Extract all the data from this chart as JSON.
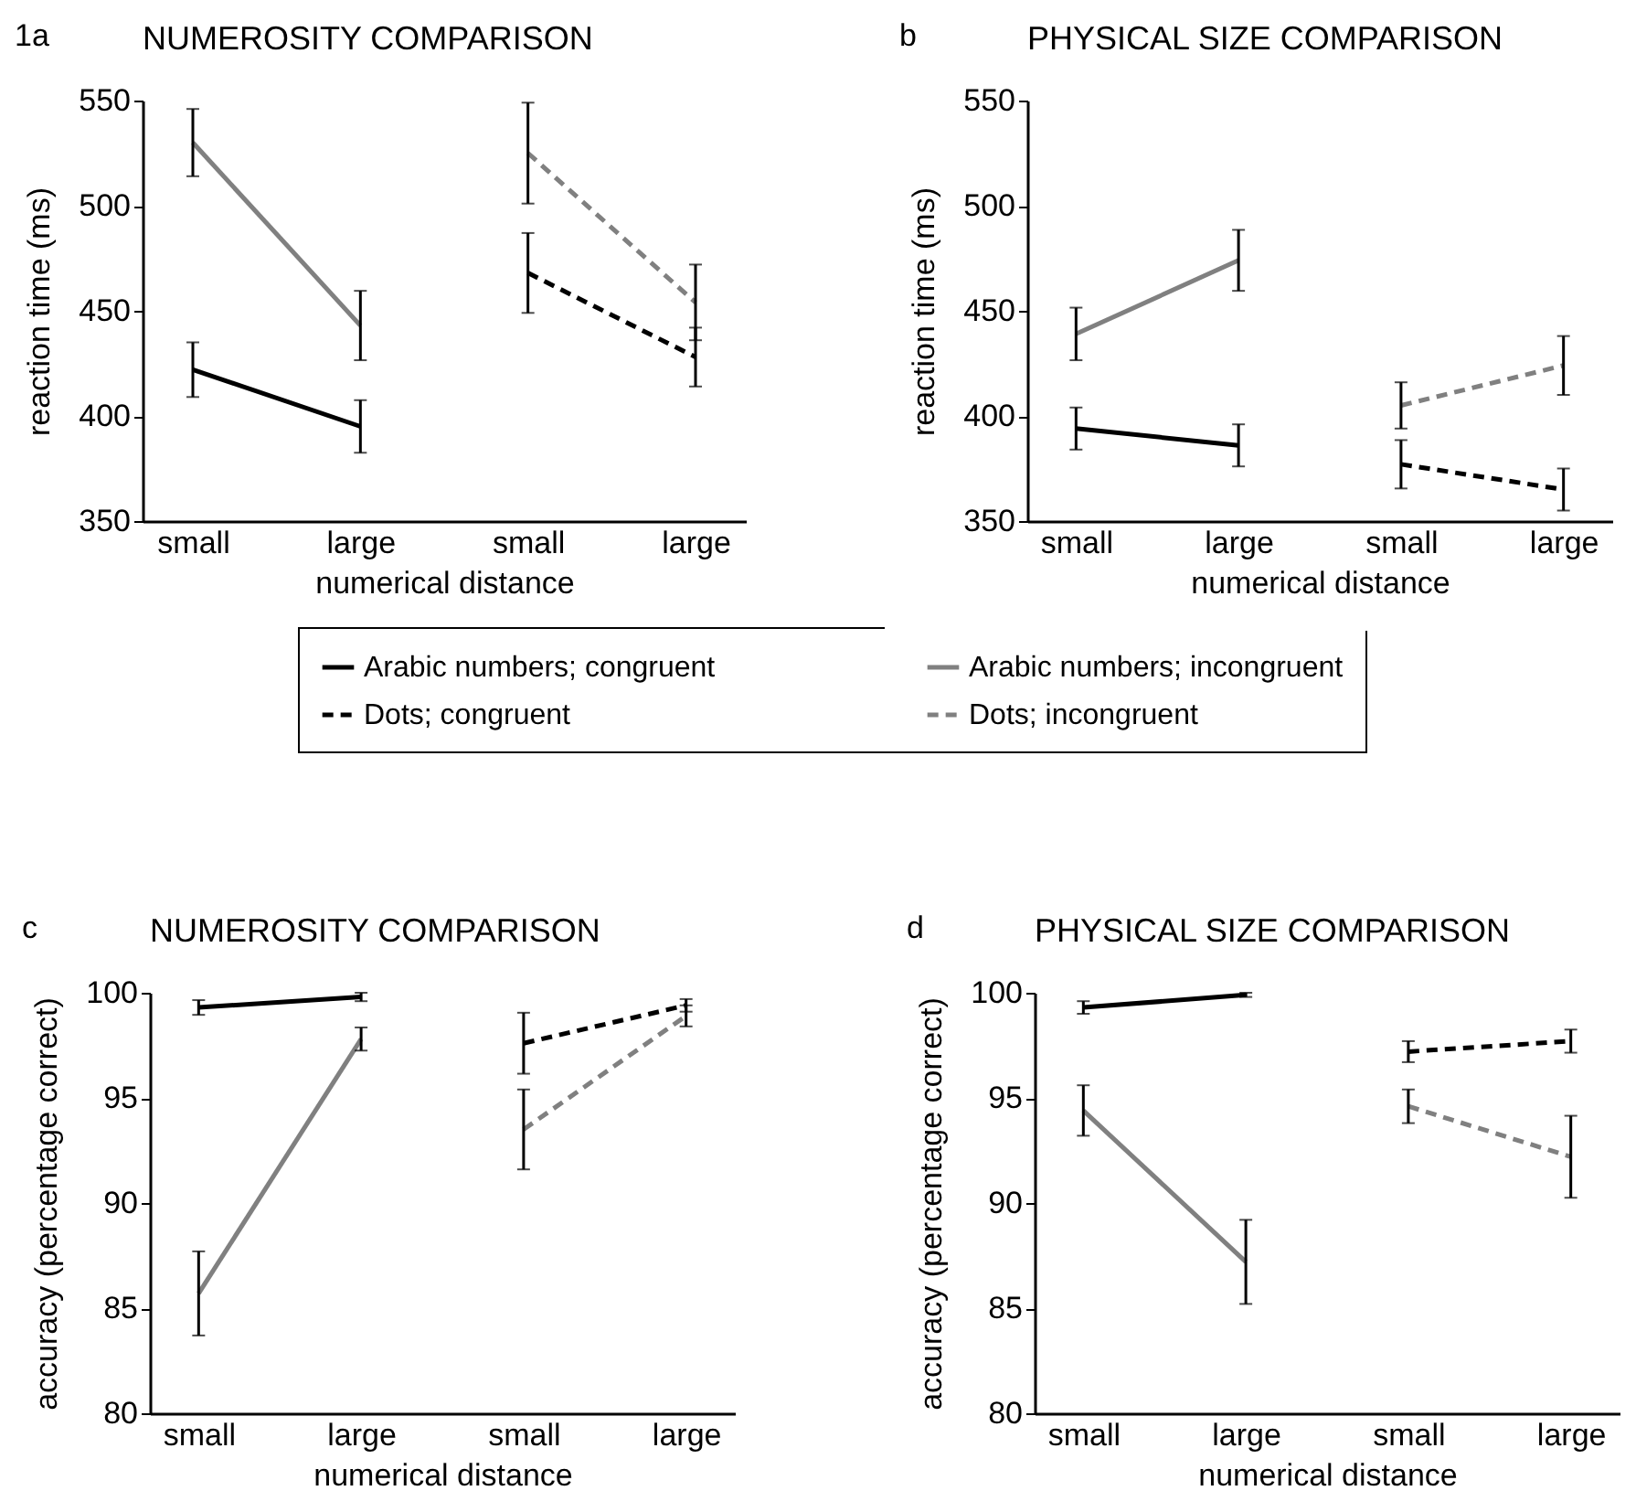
{
  "chart_data": [
    {
      "type": "line",
      "title": "NUMEROSITY COMPARISON",
      "annotations": [
        "1a"
      ],
      "xlabel": "numerical distance",
      "ylabel": "reaction time (ms)",
      "categories": [
        "small",
        "large",
        "small",
        "large"
      ],
      "ylim": [
        350,
        550
      ],
      "yticks": [
        350,
        400,
        450,
        500,
        550
      ],
      "legend": "bottom",
      "series": [
        {
          "name": "Arabic numbers; congruent",
          "color": "#000000",
          "line_style": "solid",
          "values": [
            422,
            395,
            null,
            null
          ],
          "errors": [
            13,
            12.5,
            null,
            null
          ]
        },
        {
          "name": "Dots; congruent",
          "color": "#000000",
          "line_style": "dashed",
          "values": [
            null,
            null,
            468,
            428
          ],
          "errors": [
            null,
            null,
            19,
            14
          ]
        },
        {
          "name": "Arabic numbers; incongruent",
          "color": "#808080",
          "line_style": "solid",
          "values": [
            530,
            443,
            null,
            null
          ],
          "errors": [
            16,
            16.5,
            null,
            null
          ]
        },
        {
          "name": "Dots; incongruent",
          "color": "#808080",
          "line_style": "dashed",
          "values": [
            null,
            null,
            525,
            454
          ],
          "errors": [
            null,
            null,
            24,
            18
          ]
        }
      ]
    },
    {
      "type": "line",
      "title": "PHYSICAL SIZE COMPARISON",
      "annotations": [
        "b"
      ],
      "xlabel": "numerical distance",
      "ylabel": "reaction time (ms)",
      "categories": [
        "small",
        "large",
        "small",
        "large"
      ],
      "ylim": [
        350,
        550
      ],
      "yticks": [
        350,
        400,
        450,
        500,
        550
      ],
      "series": [
        {
          "color": "#000000",
          "line_style": "solid",
          "values": [
            394,
            386,
            null,
            null
          ],
          "errors": [
            10,
            10,
            null,
            null
          ]
        },
        {
          "color": "#000000",
          "line_style": "dashed",
          "values": [
            null,
            null,
            377,
            365
          ],
          "errors": [
            null,
            null,
            11.5,
            10
          ]
        },
        {
          "color": "#808080",
          "line_style": "solid",
          "values": [
            439,
            474,
            null,
            null
          ],
          "errors": [
            12.5,
            14.5,
            null,
            null
          ]
        },
        {
          "color": "#808080",
          "line_style": "dashed",
          "values": [
            null,
            null,
            405,
            424
          ],
          "errors": [
            null,
            null,
            11,
            14
          ]
        }
      ]
    },
    {
      "type": "line",
      "title": "NUMEROSITY COMPARISON",
      "annotations": [
        "c"
      ],
      "xlabel": "numerical distance",
      "ylabel": "accuracy (percentage correct)",
      "categories": [
        "small",
        "large",
        "small",
        "large"
      ],
      "ylim": [
        80,
        100
      ],
      "yticks": [
        80,
        85,
        90,
        95,
        100
      ],
      "series": [
        {
          "color": "#000000",
          "line_style": "solid",
          "values": [
            99.3,
            99.8,
            null,
            null
          ],
          "errors": [
            0.35,
            0.2,
            null,
            null
          ]
        },
        {
          "color": "#000000",
          "line_style": "dashed",
          "values": [
            null,
            null,
            97.6,
            99.4
          ],
          "errors": [
            null,
            null,
            1.45,
            0.3
          ]
        },
        {
          "color": "#808080",
          "line_style": "solid",
          "values": [
            85.7,
            97.8,
            null,
            null
          ],
          "errors": [
            2,
            0.55,
            null,
            null
          ]
        },
        {
          "color": "#808080",
          "line_style": "dashed",
          "values": [
            null,
            null,
            93.5,
            98.9
          ],
          "errors": [
            null,
            null,
            1.9,
            0.5
          ]
        }
      ]
    },
    {
      "type": "line",
      "title": "PHYSICAL SIZE COMPARISON",
      "annotations": [
        "d"
      ],
      "xlabel": "numerical distance",
      "ylabel": "accuracy (percentage correct)",
      "categories": [
        "small",
        "large",
        "small",
        "large"
      ],
      "ylim": [
        80,
        100
      ],
      "yticks": [
        80,
        85,
        90,
        95,
        100
      ],
      "series": [
        {
          "color": "#000000",
          "line_style": "solid",
          "values": [
            99.3,
            99.9,
            null,
            null
          ],
          "errors": [
            0.3,
            0.1,
            null,
            null
          ]
        },
        {
          "color": "#000000",
          "line_style": "dashed",
          "values": [
            null,
            null,
            97.2,
            97.7
          ],
          "errors": [
            null,
            null,
            0.5,
            0.55
          ]
        },
        {
          "color": "#808080",
          "line_style": "solid",
          "values": [
            94.4,
            87.2,
            null,
            null
          ],
          "errors": [
            1.2,
            2,
            null,
            null
          ]
        },
        {
          "color": "#808080",
          "line_style": "dashed",
          "values": [
            null,
            null,
            94.6,
            92.2
          ],
          "errors": [
            null,
            null,
            0.8,
            1.95
          ]
        }
      ]
    }
  ]
}
